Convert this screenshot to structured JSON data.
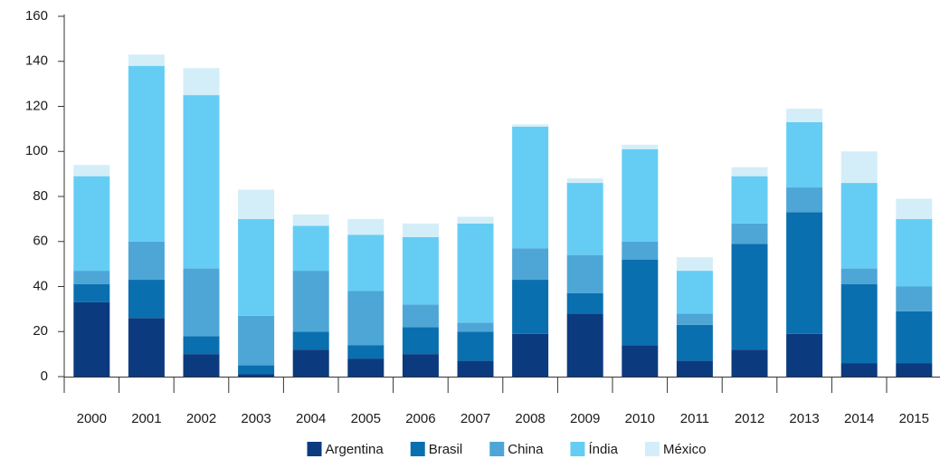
{
  "chart_data": {
    "type": "stacked_bar",
    "categories": [
      "2000",
      "2001",
      "2002",
      "2003",
      "2004",
      "2005",
      "2006",
      "2007",
      "2008",
      "2009",
      "2010",
      "2011",
      "2012",
      "2013",
      "2014",
      "2015"
    ],
    "series": [
      {
        "name": "Argentina",
        "color": "#0b3a7e",
        "values": [
          33,
          26,
          10,
          1,
          12,
          8,
          10,
          7,
          19,
          28,
          14,
          7,
          12,
          19,
          6,
          6
        ]
      },
      {
        "name": "Brasil",
        "color": "#0a6faf",
        "values": [
          8,
          17,
          8,
          4,
          8,
          6,
          12,
          13,
          24,
          9,
          38,
          16,
          47,
          54,
          35,
          23
        ]
      },
      {
        "name": "China",
        "color": "#4ea6d7",
        "values": [
          6,
          17,
          30,
          22,
          27,
          24,
          10,
          4,
          14,
          17,
          8,
          5,
          9,
          11,
          7,
          11
        ]
      },
      {
        "name": "Índia",
        "color": "#65cdf4",
        "values": [
          42,
          78,
          77,
          43,
          20,
          25,
          30,
          44,
          54,
          32,
          41,
          19,
          21,
          29,
          38,
          30
        ]
      },
      {
        "name": "México",
        "color": "#d3eef8",
        "values": [
          5,
          5,
          12,
          13,
          5,
          7,
          6,
          3,
          1,
          2,
          2,
          6,
          4,
          6,
          14,
          9
        ]
      }
    ],
    "ylim": [
      0,
      160
    ],
    "yticks": [
      0,
      20,
      40,
      60,
      80,
      100,
      120,
      140,
      160
    ],
    "grid": false,
    "legend": "bottom"
  }
}
